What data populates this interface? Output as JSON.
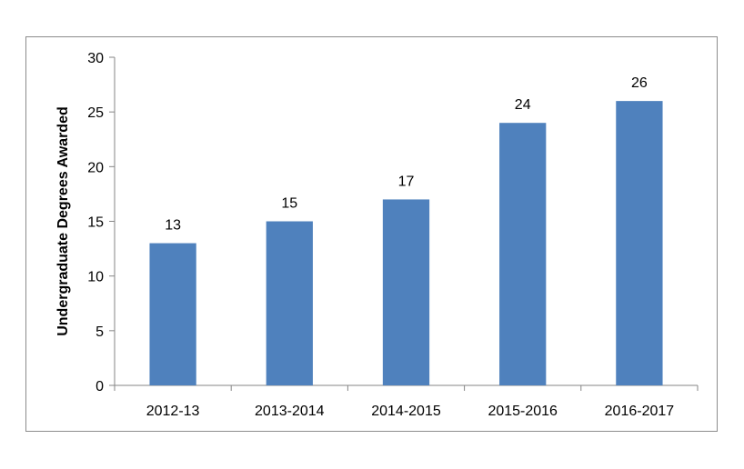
{
  "chart_data": {
    "type": "bar",
    "categories": [
      "2012-13",
      "2013-2014",
      "2014-2015",
      "2015-2016",
      "2016-2017"
    ],
    "values": [
      13,
      15,
      17,
      24,
      26
    ],
    "data_labels": [
      "13",
      "15",
      "17",
      "24",
      "26"
    ],
    "title": "",
    "xlabel": "",
    "ylabel": "Undergraduate Degrees Awarded",
    "ylim": [
      0,
      30
    ],
    "yticks": [
      0,
      5,
      10,
      15,
      20,
      25,
      30
    ],
    "grid": false,
    "legend": "none",
    "bar_color": "#4f81bd"
  }
}
